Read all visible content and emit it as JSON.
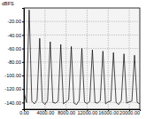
{
  "chart_data": {
    "type": "line",
    "y_label": "dBFS",
    "x": [
      0,
      500,
      1000,
      1500,
      2000,
      2500,
      3000,
      3500,
      4000,
      4500,
      5000,
      5500,
      6000,
      6500,
      7000,
      7500,
      8000,
      8500,
      9000,
      9500,
      10000,
      10500,
      11000,
      11500,
      12000,
      12500,
      13000,
      13500,
      14000,
      14500,
      15000,
      15500,
      16000,
      16500,
      17000,
      17500,
      18000,
      18500,
      19000,
      19500,
      20000,
      20500,
      21000,
      21500,
      22000
    ],
    "series": [
      {
        "color": "#000000",
        "values": [
          -125,
          -140,
          -3,
          -138,
          -142,
          -136,
          -45,
          -139,
          -143,
          -137,
          -50,
          -140,
          -141,
          -138,
          -54,
          -142,
          -139,
          -136,
          -57,
          -141,
          -143,
          -137,
          -60,
          -139,
          -142,
          -138,
          -62,
          -140,
          -141,
          -137,
          -64,
          -142,
          -139,
          -138,
          -66,
          -140,
          -143,
          -137,
          -68,
          -141,
          -139,
          -138,
          -70,
          -140,
          -142
        ]
      }
    ],
    "xlim": [
      0,
      22000
    ],
    "xticks": [
      {
        "value": 0,
        "label": "0.00"
      },
      {
        "value": 4000,
        "label": "4000.00"
      },
      {
        "value": 8000,
        "label": "8000.00"
      },
      {
        "value": 12000,
        "label": "12000.00"
      },
      {
        "value": 16000,
        "label": "16000.00"
      },
      {
        "value": 20000,
        "label": "20000.00"
      }
    ],
    "ylim": [
      -150,
      0
    ],
    "yticks": [
      {
        "value": -20,
        "label": "-20.00"
      },
      {
        "value": -40,
        "label": "-40.00"
      },
      {
        "value": -60,
        "label": "-60.00"
      },
      {
        "value": -80,
        "label": "-80.00"
      },
      {
        "value": -100,
        "label": "-100.00"
      },
      {
        "value": -120,
        "label": "-120.00"
      },
      {
        "value": -140,
        "label": "-140.00"
      }
    ],
    "grid": true
  }
}
